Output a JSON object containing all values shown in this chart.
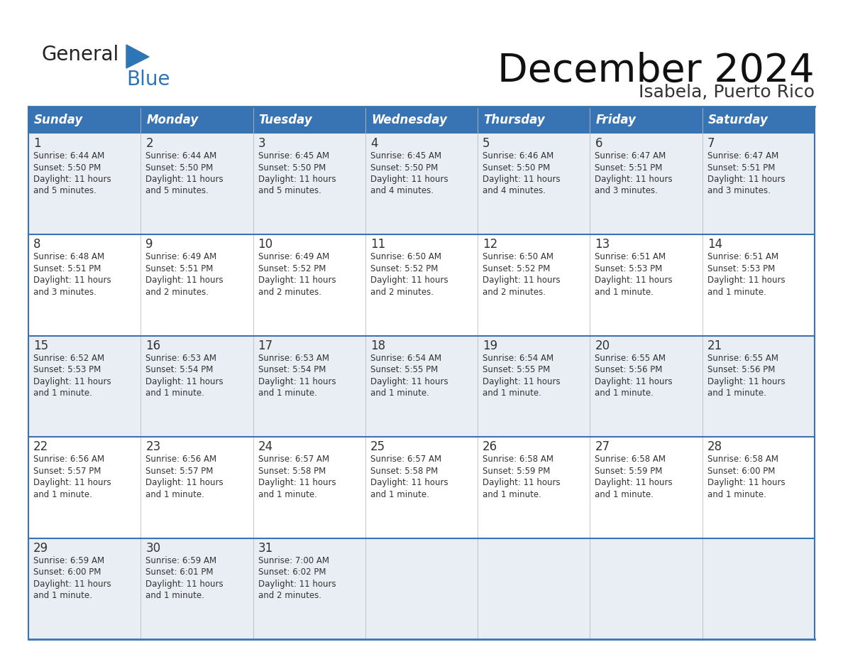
{
  "title": "December 2024",
  "subtitle": "Isabela, Puerto Rico",
  "header_color": "#3873B3",
  "header_text_color": "#FFFFFF",
  "cell_bg_even": "#E8EEF4",
  "cell_bg_odd": "#FFFFFF",
  "border_color": "#3873B3",
  "text_color": "#333333",
  "days_of_week": [
    "Sunday",
    "Monday",
    "Tuesday",
    "Wednesday",
    "Thursday",
    "Friday",
    "Saturday"
  ],
  "logo_general_color": "#222222",
  "logo_blue_color": "#2E75B6",
  "logo_triangle_color": "#2E75B6",
  "calendar_data": [
    [
      {
        "day": 1,
        "sunrise": "6:44 AM",
        "sunset": "5:50 PM",
        "daylight": "11 hours and 5 minutes."
      },
      {
        "day": 2,
        "sunrise": "6:44 AM",
        "sunset": "5:50 PM",
        "daylight": "11 hours and 5 minutes."
      },
      {
        "day": 3,
        "sunrise": "6:45 AM",
        "sunset": "5:50 PM",
        "daylight": "11 hours and 5 minutes."
      },
      {
        "day": 4,
        "sunrise": "6:45 AM",
        "sunset": "5:50 PM",
        "daylight": "11 hours and 4 minutes."
      },
      {
        "day": 5,
        "sunrise": "6:46 AM",
        "sunset": "5:50 PM",
        "daylight": "11 hours and 4 minutes."
      },
      {
        "day": 6,
        "sunrise": "6:47 AM",
        "sunset": "5:51 PM",
        "daylight": "11 hours and 3 minutes."
      },
      {
        "day": 7,
        "sunrise": "6:47 AM",
        "sunset": "5:51 PM",
        "daylight": "11 hours and 3 minutes."
      }
    ],
    [
      {
        "day": 8,
        "sunrise": "6:48 AM",
        "sunset": "5:51 PM",
        "daylight": "11 hours and 3 minutes."
      },
      {
        "day": 9,
        "sunrise": "6:49 AM",
        "sunset": "5:51 PM",
        "daylight": "11 hours and 2 minutes."
      },
      {
        "day": 10,
        "sunrise": "6:49 AM",
        "sunset": "5:52 PM",
        "daylight": "11 hours and 2 minutes."
      },
      {
        "day": 11,
        "sunrise": "6:50 AM",
        "sunset": "5:52 PM",
        "daylight": "11 hours and 2 minutes."
      },
      {
        "day": 12,
        "sunrise": "6:50 AM",
        "sunset": "5:52 PM",
        "daylight": "11 hours and 2 minutes."
      },
      {
        "day": 13,
        "sunrise": "6:51 AM",
        "sunset": "5:53 PM",
        "daylight": "11 hours and 1 minute."
      },
      {
        "day": 14,
        "sunrise": "6:51 AM",
        "sunset": "5:53 PM",
        "daylight": "11 hours and 1 minute."
      }
    ],
    [
      {
        "day": 15,
        "sunrise": "6:52 AM",
        "sunset": "5:53 PM",
        "daylight": "11 hours and 1 minute."
      },
      {
        "day": 16,
        "sunrise": "6:53 AM",
        "sunset": "5:54 PM",
        "daylight": "11 hours and 1 minute."
      },
      {
        "day": 17,
        "sunrise": "6:53 AM",
        "sunset": "5:54 PM",
        "daylight": "11 hours and 1 minute."
      },
      {
        "day": 18,
        "sunrise": "6:54 AM",
        "sunset": "5:55 PM",
        "daylight": "11 hours and 1 minute."
      },
      {
        "day": 19,
        "sunrise": "6:54 AM",
        "sunset": "5:55 PM",
        "daylight": "11 hours and 1 minute."
      },
      {
        "day": 20,
        "sunrise": "6:55 AM",
        "sunset": "5:56 PM",
        "daylight": "11 hours and 1 minute."
      },
      {
        "day": 21,
        "sunrise": "6:55 AM",
        "sunset": "5:56 PM",
        "daylight": "11 hours and 1 minute."
      }
    ],
    [
      {
        "day": 22,
        "sunrise": "6:56 AM",
        "sunset": "5:57 PM",
        "daylight": "11 hours and 1 minute."
      },
      {
        "day": 23,
        "sunrise": "6:56 AM",
        "sunset": "5:57 PM",
        "daylight": "11 hours and 1 minute."
      },
      {
        "day": 24,
        "sunrise": "6:57 AM",
        "sunset": "5:58 PM",
        "daylight": "11 hours and 1 minute."
      },
      {
        "day": 25,
        "sunrise": "6:57 AM",
        "sunset": "5:58 PM",
        "daylight": "11 hours and 1 minute."
      },
      {
        "day": 26,
        "sunrise": "6:58 AM",
        "sunset": "5:59 PM",
        "daylight": "11 hours and 1 minute."
      },
      {
        "day": 27,
        "sunrise": "6:58 AM",
        "sunset": "5:59 PM",
        "daylight": "11 hours and 1 minute."
      },
      {
        "day": 28,
        "sunrise": "6:58 AM",
        "sunset": "6:00 PM",
        "daylight": "11 hours and 1 minute."
      }
    ],
    [
      {
        "day": 29,
        "sunrise": "6:59 AM",
        "sunset": "6:00 PM",
        "daylight": "11 hours and 1 minute."
      },
      {
        "day": 30,
        "sunrise": "6:59 AM",
        "sunset": "6:01 PM",
        "daylight": "11 hours and 1 minute."
      },
      {
        "day": 31,
        "sunrise": "7:00 AM",
        "sunset": "6:02 PM",
        "daylight": "11 hours and 2 minutes."
      },
      null,
      null,
      null,
      null
    ]
  ]
}
